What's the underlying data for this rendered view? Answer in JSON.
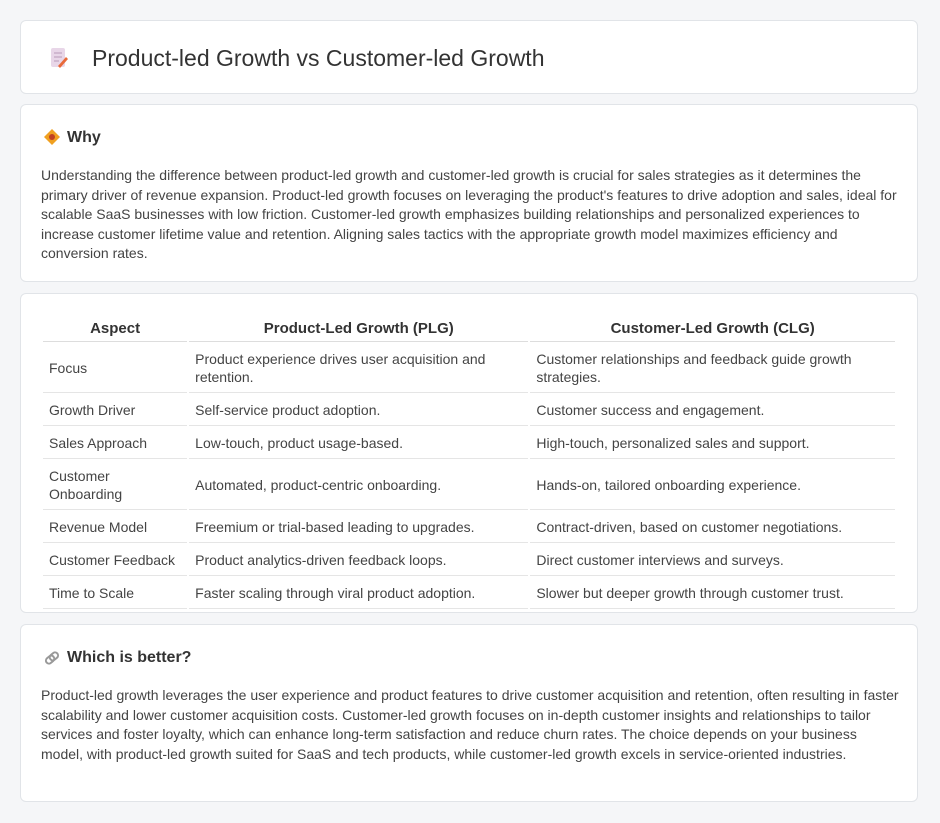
{
  "header": {
    "title": "Product-led Growth vs Customer-led Growth"
  },
  "why": {
    "heading": "Why",
    "text": "Understanding the difference between product-led growth and customer-led growth is crucial for sales strategies as it determines the primary driver of revenue expansion. Product-led growth focuses on leveraging the product's features to drive adoption and sales, ideal for scalable SaaS businesses with low friction. Customer-led growth emphasizes building relationships and personalized experiences to increase customer lifetime value and retention. Aligning sales tactics with the appropriate growth model maximizes efficiency and conversion rates."
  },
  "table": {
    "headers": [
      "Aspect",
      "Product-Led Growth (PLG)",
      "Customer-Led Growth (CLG)"
    ],
    "rows": [
      [
        "Focus",
        "Product experience drives user acquisition and retention.",
        "Customer relationships and feedback guide growth strategies."
      ],
      [
        "Growth Driver",
        "Self-service product adoption.",
        "Customer success and engagement."
      ],
      [
        "Sales Approach",
        "Low-touch, product usage-based.",
        "High-touch, personalized sales and support."
      ],
      [
        "Customer Onboarding",
        "Automated, product-centric onboarding.",
        "Hands-on, tailored onboarding experience."
      ],
      [
        "Revenue Model",
        "Freemium or trial-based leading to upgrades.",
        "Contract-driven, based on customer negotiations."
      ],
      [
        "Customer Feedback",
        "Product analytics-driven feedback loops.",
        "Direct customer interviews and surveys."
      ],
      [
        "Time to Scale",
        "Faster scaling through viral product adoption.",
        "Slower but deeper growth through customer trust."
      ]
    ]
  },
  "better": {
    "heading": "Which is better?",
    "text": "Product-led growth leverages the user experience and product features to drive customer acquisition and retention, often resulting in faster scalability and lower customer acquisition costs. Customer-led growth focuses on in-depth customer insights and relationships to tailor services and foster loyalty, which can enhance long-term satisfaction and reduce churn rates. The choice depends on your business model, with product-led growth suited for SaaS and tech products, while customer-led growth excels in service-oriented industries."
  }
}
